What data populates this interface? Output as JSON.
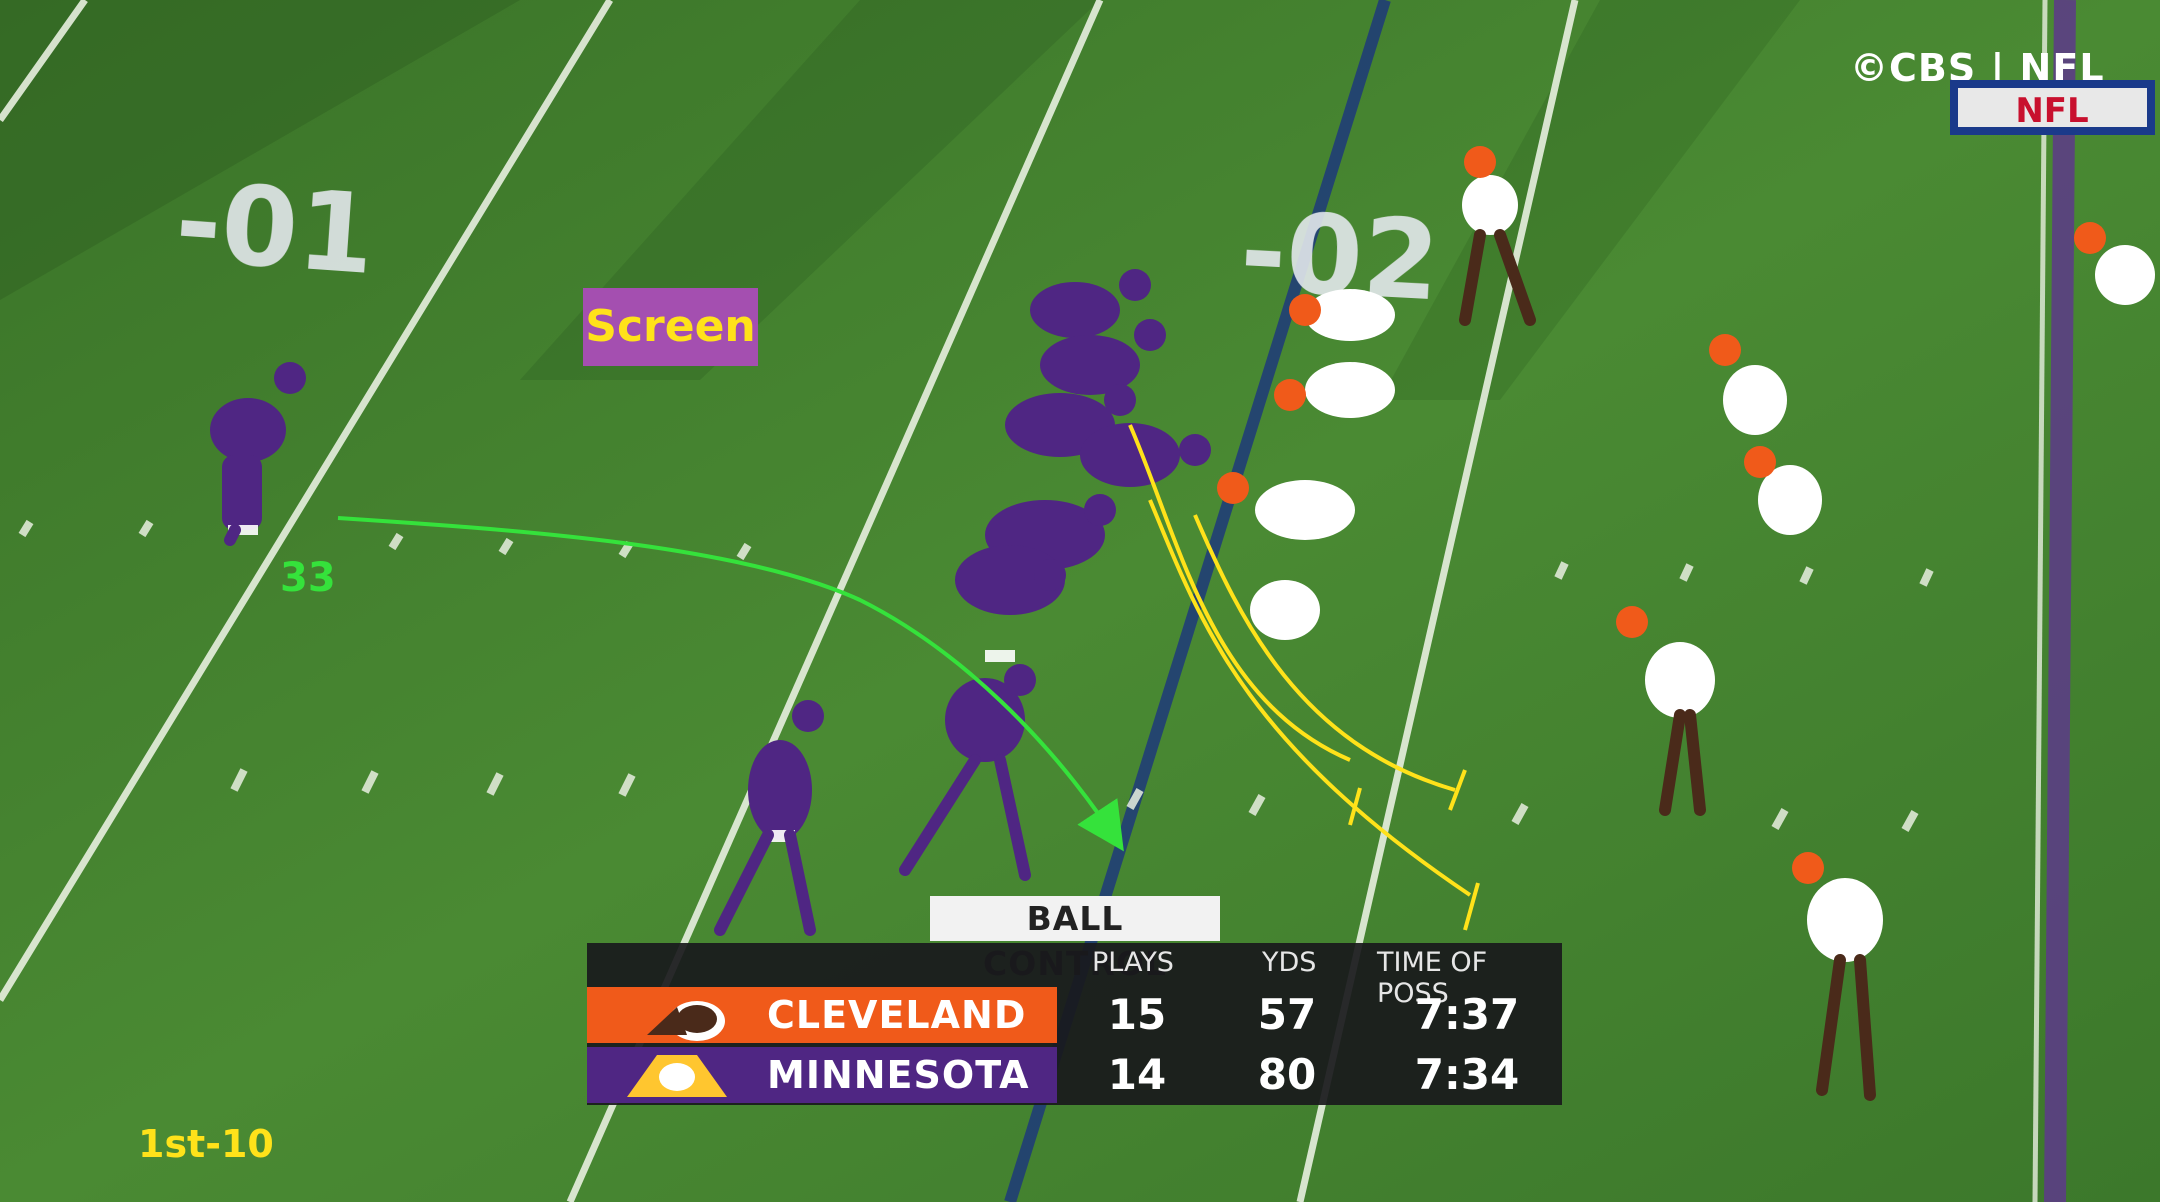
{
  "broadcast": {
    "network": "©CBS | NFL",
    "league_logo_text": "NFL"
  },
  "field_numbers": {
    "left": "-01",
    "right": "-02"
  },
  "annotations": {
    "play_tag": "Screen",
    "player_number": "33",
    "down_distance": "1st-10"
  },
  "scoreboard": {
    "title": "BALL CONTROL",
    "headers": [
      "PLAYS",
      "YDS",
      "TIME OF POSS"
    ],
    "teams": [
      {
        "name": "CLEVELAND",
        "plays": "15",
        "yds": "57",
        "time": "7:37",
        "color": "#f05a1a"
      },
      {
        "name": "MINNESOTA",
        "plays": "14",
        "yds": "80",
        "time": "7:34",
        "color": "#4f2683"
      }
    ]
  },
  "colors": {
    "route_green": "#35e23b",
    "block_yellow": "#ffe21a",
    "tag_purple": "#a44fb0"
  }
}
